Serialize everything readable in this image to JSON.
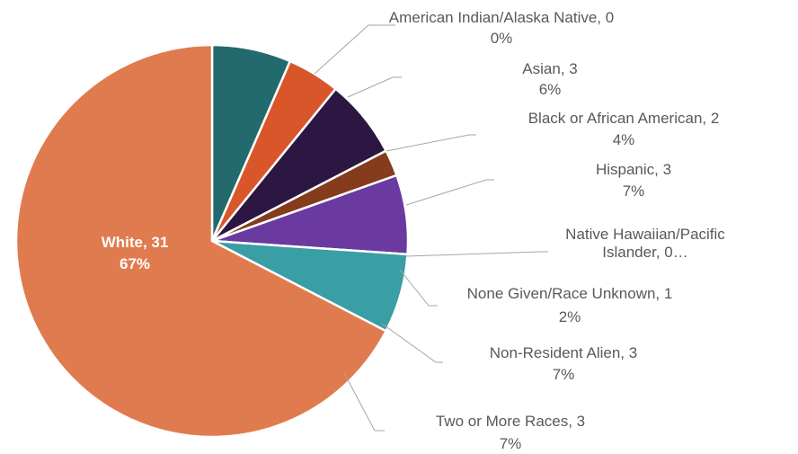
{
  "chart_data": {
    "type": "pie",
    "categories": [
      "American Indian/Alaska Native",
      "Asian",
      "Black or African American",
      "Hispanic",
      "Native Hawaiian/Pacific Islander",
      "None Given/Race Unknown",
      "Non-Resident Alien",
      "Two or More Races",
      "White"
    ],
    "values": [
      0,
      3,
      2,
      3,
      0,
      1,
      3,
      3,
      31
    ],
    "value_labels": [
      "American Indian/Alaska Native, 0",
      "Asian, 3",
      "Black or African American, 2",
      "Hispanic, 3",
      "Native Hawaiian/Pacific Islander, 0…",
      "None Given/Race Unknown, 1",
      "Non-Resident Alien, 3",
      "Two or More Races, 3",
      "White, 31"
    ],
    "percents": [
      0,
      6,
      4,
      7,
      null,
      2,
      7,
      7,
      67
    ],
    "percent_labels": [
      "0%",
      "6%",
      "4%",
      "7%",
      null,
      "2%",
      "7%",
      "7%",
      "67%"
    ],
    "colors": [
      "#8c8c8c",
      "#236a6e",
      "#d9562a",
      "#2b1742",
      "#5a7d3a",
      "#843c1c",
      "#6a3aa0",
      "#3a9ea5",
      "#e07b4f"
    ]
  }
}
